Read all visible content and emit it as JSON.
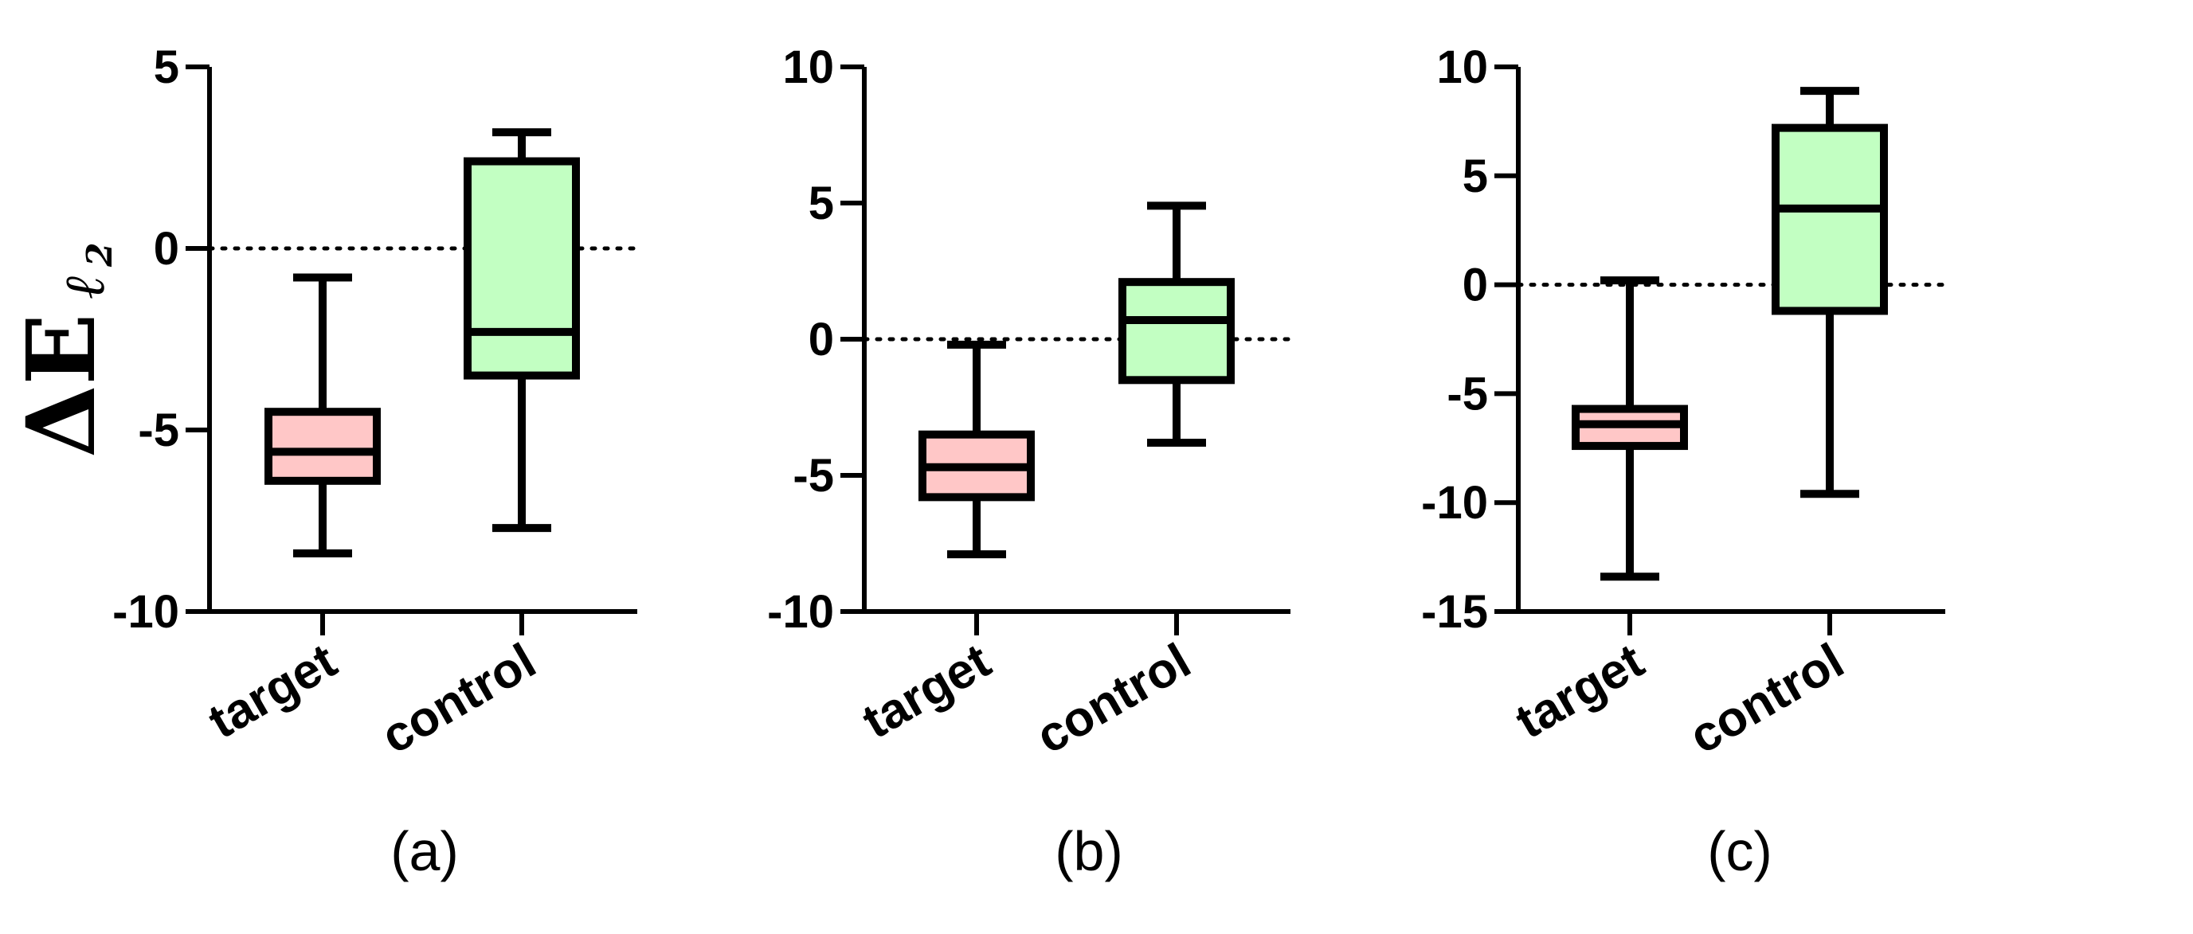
{
  "colors": {
    "target_fill": "#ffc7c7",
    "control_fill": "#c2ffc2",
    "stroke": "#000000"
  },
  "y_axis_label": {
    "main": "ΔE",
    "sub": "ℓ",
    "subsub": "2"
  },
  "chart_data": [
    {
      "type": "box",
      "panel_label": "(a)",
      "categories": [
        "target",
        "control"
      ],
      "ylim": [
        -10,
        5
      ],
      "yticks": [
        5,
        0,
        -5,
        -10
      ],
      "reference_line": 0,
      "boxes": [
        {
          "name": "target",
          "min": -8.4,
          "q1": -6.4,
          "median": -5.6,
          "q3": -4.5,
          "max": -0.8
        },
        {
          "name": "control",
          "min": -7.7,
          "q1": -3.5,
          "median": -2.3,
          "q3": 2.4,
          "max": 3.2
        }
      ]
    },
    {
      "type": "box",
      "panel_label": "(b)",
      "categories": [
        "target",
        "control"
      ],
      "ylim": [
        -10,
        10
      ],
      "yticks": [
        10,
        5,
        0,
        -5,
        -10
      ],
      "reference_line": 0,
      "boxes": [
        {
          "name": "target",
          "min": -7.9,
          "q1": -5.8,
          "median": -4.7,
          "q3": -3.5,
          "max": -0.2
        },
        {
          "name": "control",
          "min": -3.8,
          "q1": -1.5,
          "median": 0.7,
          "q3": 2.1,
          "max": 4.9
        }
      ]
    },
    {
      "type": "box",
      "panel_label": "(c)",
      "categories": [
        "target",
        "control"
      ],
      "ylim": [
        -15,
        10
      ],
      "yticks": [
        10,
        5,
        0,
        -5,
        -10,
        -15
      ],
      "reference_line": 0,
      "boxes": [
        {
          "name": "target",
          "min": -13.4,
          "q1": -7.4,
          "median": -6.4,
          "q3": -5.7,
          "max": 0.2
        },
        {
          "name": "control",
          "min": -9.6,
          "q1": -1.2,
          "median": 3.5,
          "q3": 7.2,
          "max": 8.9
        }
      ]
    }
  ]
}
